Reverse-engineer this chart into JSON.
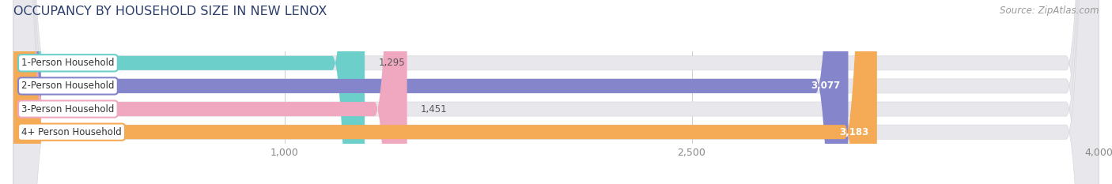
{
  "title": "OCCUPANCY BY HOUSEHOLD SIZE IN NEW LENOX",
  "source": "Source: ZipAtlas.com",
  "categories": [
    "1-Person Household",
    "2-Person Household",
    "3-Person Household",
    "4+ Person Household"
  ],
  "values": [
    1295,
    3077,
    1451,
    3183
  ],
  "value_labels": [
    "1,295",
    "3,077",
    "1,451",
    "3,183"
  ],
  "bar_colors": [
    "#6dcfca",
    "#8585cc",
    "#f0a8c0",
    "#f5aa55"
  ],
  "label_bg_colors": [
    "#ffffff",
    "#ffffff",
    "#ffffff",
    "#ffffff"
  ],
  "label_border_colors": [
    "#6dcfca",
    "#8585cc",
    "#f0a8c0",
    "#f5aa55"
  ],
  "bg_color": "#ffffff",
  "bar_bg_color": "#e8e8ec",
  "bar_track_bg": "#f0f0f4",
  "xlim": [
    0,
    4000
  ],
  "xticks": [
    1000,
    2500,
    4000
  ],
  "xticklabels": [
    "1,000",
    "2,500",
    "4,000"
  ],
  "title_fontsize": 11.5,
  "source_fontsize": 8.5,
  "label_fontsize": 8.5,
  "value_fontsize": 8.5,
  "tick_fontsize": 9,
  "bar_height": 0.62,
  "n_bars": 4
}
